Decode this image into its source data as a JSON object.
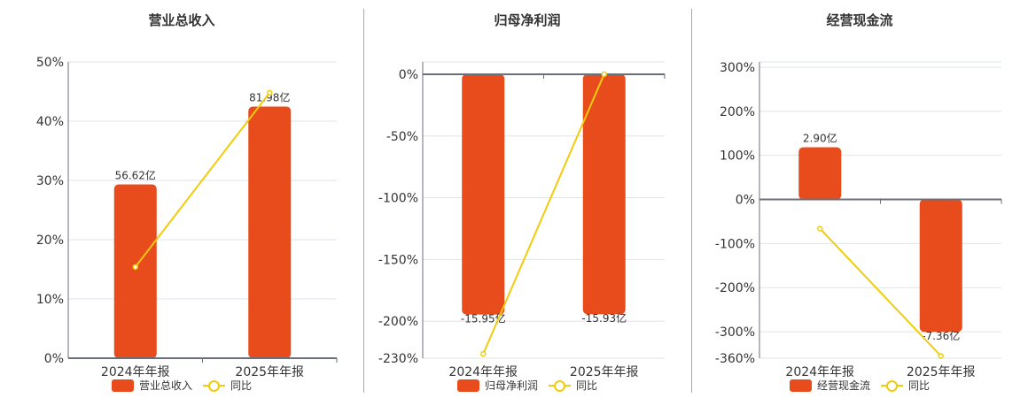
{
  "colors": {
    "bar": "#e84c1c",
    "line": "#f2cc0c",
    "grid": "#dde3ee",
    "axis": "#6b6f7a",
    "text": "#333333"
  },
  "chart_data": [
    {
      "type": "bar+line",
      "title": "营业总收入",
      "categories": [
        "2024年年报",
        "2025年年报"
      ],
      "bar_series": {
        "name": "营业总收入",
        "values": [
          56.62,
          81.98
        ],
        "labels": [
          "56.62亿",
          "81.98亿"
        ]
      },
      "line_series": {
        "name": "同比",
        "values": [
          15.4,
          44.8
        ]
      },
      "ylim": [
        0,
        50
      ],
      "yticks": [
        0,
        10,
        20,
        30,
        40,
        50
      ],
      "ytick_labels": [
        "0%",
        "10%",
        "20%",
        "30%",
        "40%",
        "50%"
      ],
      "grid": true,
      "legend": "bottom"
    },
    {
      "type": "bar+line",
      "title": "归母净利润",
      "categories": [
        "2024年年报",
        "2025年年报"
      ],
      "bar_series": {
        "name": "归母净利润",
        "values": [
          -15.95,
          -15.93
        ],
        "labels": [
          "-15.95亿",
          "-15.93亿"
        ]
      },
      "line_series": {
        "name": "同比",
        "values": [
          -226.5,
          0.1
        ]
      },
      "ylim": [
        -230,
        10
      ],
      "yticks": [
        0,
        -50,
        -100,
        -150,
        -200,
        -230
      ],
      "ytick_labels": [
        "0%",
        "-50%",
        "-100%",
        "-150%",
        "-200%",
        "-230%"
      ],
      "grid": true,
      "legend": "bottom"
    },
    {
      "type": "bar+line",
      "title": "经营现金流",
      "categories": [
        "2024年年报",
        "2025年年报"
      ],
      "bar_series": {
        "name": "经营现金流",
        "values": [
          2.9,
          -7.36
        ],
        "labels": [
          "2.90亿",
          "-7.36亿"
        ]
      },
      "line_series": {
        "name": "同比",
        "values": [
          -66,
          -355
        ]
      },
      "ylim": [
        -360,
        312
      ],
      "yticks": [
        300,
        200,
        100,
        0,
        -100,
        -200,
        -300,
        -360
      ],
      "ytick_labels": [
        "300%",
        "200%",
        "100%",
        "0%",
        "-100%",
        "-200%",
        "-300%",
        "-360%"
      ],
      "grid": true,
      "legend": "bottom"
    }
  ]
}
